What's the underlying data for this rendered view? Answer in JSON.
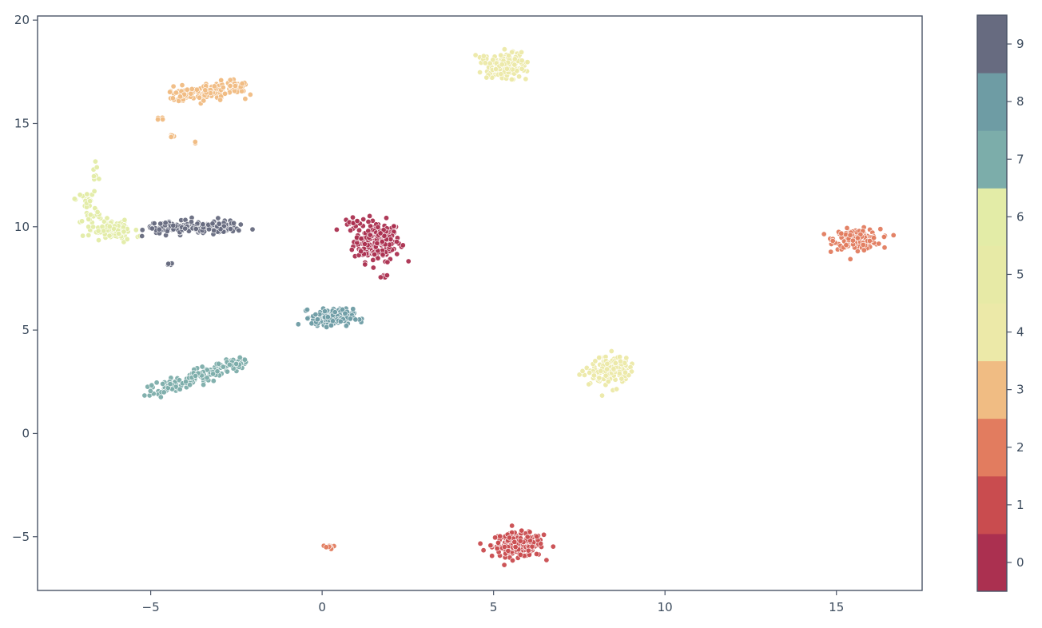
{
  "chart_data": {
    "type": "scatter",
    "title": "",
    "xlabel": "",
    "ylabel": "",
    "xlim": [
      -8.3,
      17.5
    ],
    "ylim": [
      -7.6,
      20.2
    ],
    "xticks": [
      -5,
      0,
      5,
      10,
      15
    ],
    "xtick_labels": [
      "−5",
      "0",
      "5",
      "10",
      "15"
    ],
    "yticks": [
      -5,
      0,
      5,
      10,
      15,
      20
    ],
    "ytick_labels": [
      "−5",
      "0",
      "5",
      "10",
      "15",
      "20"
    ],
    "grid": false,
    "colormap": "Spectral (discrete, 10 classes)",
    "colorbar": {
      "labels": [
        "0",
        "1",
        "2",
        "3",
        "4",
        "5",
        "6",
        "7",
        "8",
        "9"
      ],
      "colors": [
        "#ab3050",
        "#c94c4f",
        "#e27c5f",
        "#f0bc83",
        "#ece9a8",
        "#e7eaa6",
        "#e3eca7",
        "#7cadaa",
        "#6e9ca4",
        "#676b80"
      ]
    },
    "clusters": [
      {
        "label": "0",
        "shape": "blob",
        "center": [
          1.6,
          9.3
        ],
        "spread": [
          0.45,
          0.65
        ],
        "count": 200
      },
      {
        "label": "0",
        "shape": "blob",
        "center": [
          0.9,
          10.2
        ],
        "spread": [
          0.15,
          0.15
        ],
        "count": 12
      },
      {
        "label": "0",
        "shape": "blob",
        "center": [
          1.8,
          7.6
        ],
        "spread": [
          0.06,
          0.08
        ],
        "count": 8
      },
      {
        "label": "1",
        "shape": "blob",
        "center": [
          5.7,
          -5.4
        ],
        "spread": [
          0.5,
          0.38
        ],
        "count": 220
      },
      {
        "label": "2",
        "shape": "blob",
        "center": [
          15.6,
          9.4
        ],
        "spread": [
          0.45,
          0.32
        ],
        "count": 160
      },
      {
        "label": "2",
        "shape": "blob",
        "center": [
          0.2,
          -5.5
        ],
        "spread": [
          0.12,
          0.07
        ],
        "count": 10
      },
      {
        "label": "3",
        "shape": "line",
        "from": [
          -4.4,
          16.3
        ],
        "to": [
          -2.4,
          16.8
        ],
        "spread": 0.28,
        "count": 150
      },
      {
        "label": "3",
        "shape": "blob",
        "center": [
          -4.7,
          15.2
        ],
        "spread": [
          0.08,
          0.08
        ],
        "count": 5
      },
      {
        "label": "3",
        "shape": "blob",
        "center": [
          -4.4,
          14.4
        ],
        "spread": [
          0.06,
          0.06
        ],
        "count": 4
      },
      {
        "label": "3",
        "shape": "blob",
        "center": [
          -3.7,
          14.1
        ],
        "spread": [
          0.04,
          0.04
        ],
        "count": 2
      },
      {
        "label": "4",
        "shape": "blob",
        "center": [
          5.3,
          17.8
        ],
        "spread": [
          0.42,
          0.4
        ],
        "count": 170
      },
      {
        "label": "4",
        "shape": "blob",
        "center": [
          8.4,
          3.1
        ],
        "spread": [
          0.38,
          0.45
        ],
        "count": 150
      },
      {
        "label": "6",
        "shape": "blob",
        "center": [
          -6.1,
          9.8
        ],
        "spread": [
          0.4,
          0.3
        ],
        "count": 110
      },
      {
        "label": "6",
        "shape": "line",
        "from": [
          -6.9,
          11.8
        ],
        "to": [
          -6.7,
          10.3
        ],
        "spread": 0.2,
        "count": 40
      },
      {
        "label": "6",
        "shape": "line",
        "from": [
          -6.6,
          13.1
        ],
        "to": [
          -6.6,
          12.1
        ],
        "spread": 0.06,
        "count": 8
      },
      {
        "label": "7",
        "shape": "line",
        "from": [
          -4.9,
          2.0
        ],
        "to": [
          -2.3,
          3.5
        ],
        "spread": 0.22,
        "count": 150
      },
      {
        "label": "8",
        "shape": "blob",
        "center": [
          0.3,
          5.6
        ],
        "spread": [
          0.4,
          0.28
        ],
        "count": 170
      },
      {
        "label": "9",
        "shape": "line",
        "from": [
          -5.0,
          9.9
        ],
        "to": [
          -2.4,
          10.0
        ],
        "spread": 0.25,
        "count": 150
      },
      {
        "label": "9",
        "shape": "blob",
        "center": [
          -4.4,
          8.2
        ],
        "spread": [
          0.06,
          0.05
        ],
        "count": 5
      }
    ]
  }
}
